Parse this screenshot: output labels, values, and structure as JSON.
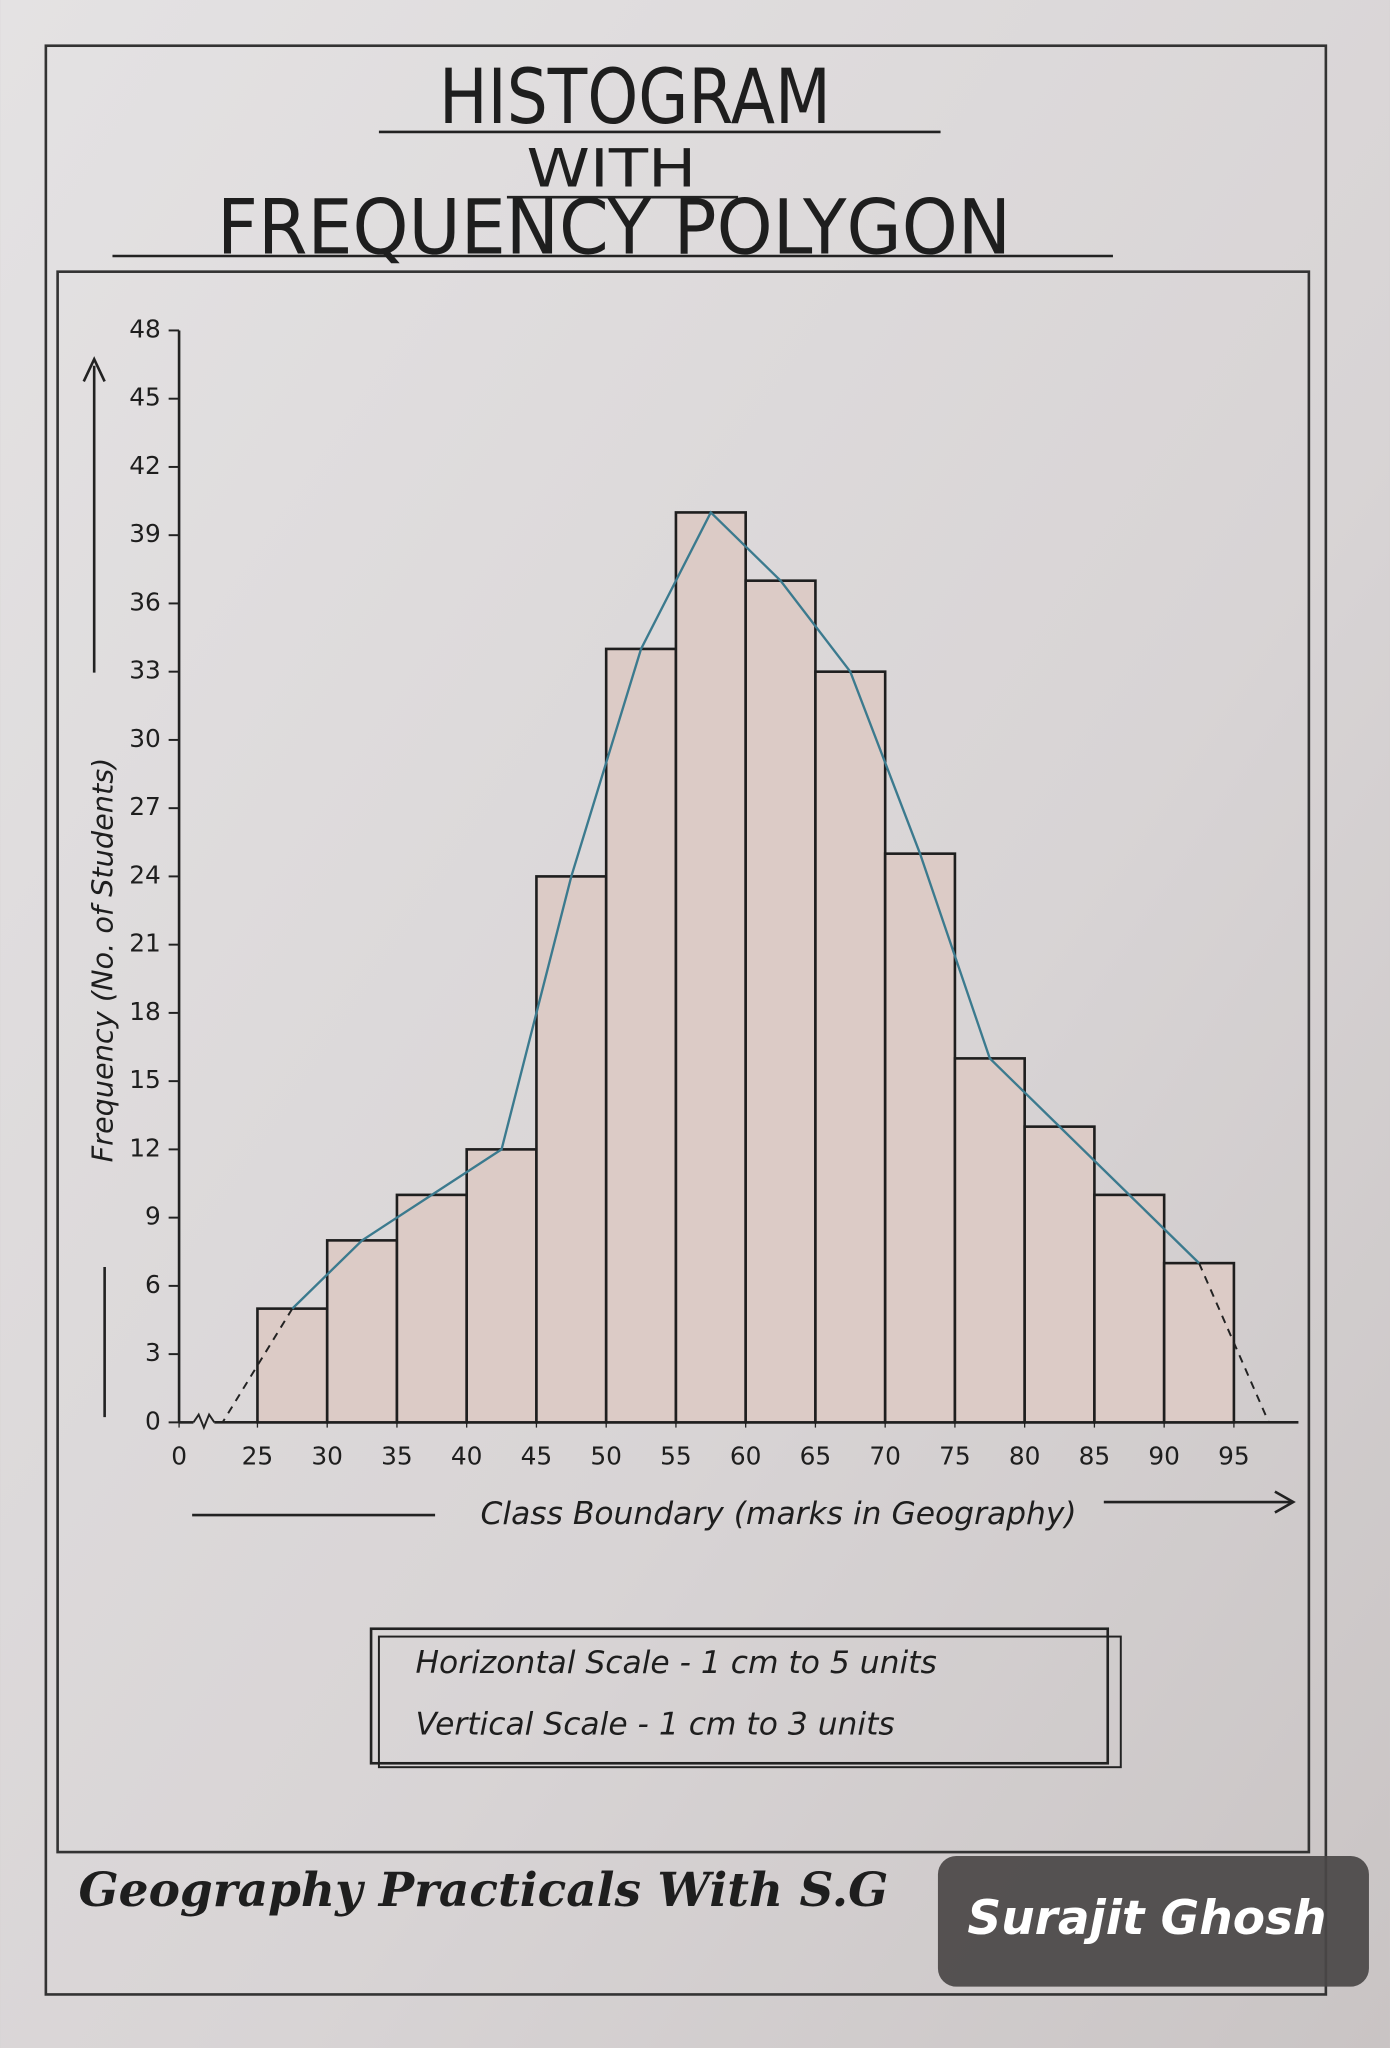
{
  "chart_data": {
    "type": "histogram",
    "title": [
      "HISTOGRAM",
      "WITH",
      "FREQUENCY POLYGON"
    ],
    "x_label": "Class Boundary (marks in Geography)",
    "y_label": "Frequency (No. of Students)",
    "bins": [
      25,
      30,
      35,
      40,
      45,
      50,
      55,
      60,
      65,
      70,
      75,
      80,
      85,
      90,
      95
    ],
    "values": [
      5,
      8,
      10,
      12,
      24,
      34,
      40,
      37,
      33,
      25,
      16,
      13,
      10,
      7
    ],
    "color": "#dccbc6",
    "polygon_color": "#3b7a8e",
    "frequency_polygon": true,
    "xlim": [
      0,
      100
    ],
    "x_break": [
      0,
      20
    ],
    "xticks": [
      0,
      25,
      30,
      35,
      40,
      45,
      50,
      55,
      60,
      65,
      70,
      75,
      80,
      85,
      90,
      95
    ],
    "ylim": [
      0,
      48
    ],
    "yticks": [
      0,
      3,
      6,
      9,
      12,
      15,
      18,
      21,
      24,
      27,
      30,
      33,
      36,
      39,
      42,
      45,
      48
    ],
    "scale_note": [
      "Horizontal Scale - 1 cm to 5 units",
      "Vertical Scale - 1 cm to 3 units"
    ]
  },
  "footer": {
    "channel": "Geography Practicals With S.G",
    "author": "Surajit Ghosh"
  }
}
